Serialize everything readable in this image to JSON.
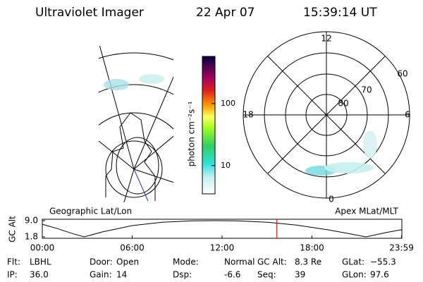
{
  "header": {
    "instrument": "Ultraviolet Imager",
    "date": "22 Apr 07",
    "time": "15:39:14 UT"
  },
  "geographic_panel": {
    "label": "Geographic Lat/Lon"
  },
  "colorbar": {
    "label": "photon cm⁻²s⁻¹",
    "log": true,
    "range": [
      3.5,
      575
    ],
    "ticks": [
      10,
      100
    ]
  },
  "polar_panel": {
    "label": "Apex MLat/MLT",
    "mlt_labels": [
      "12",
      "18",
      "6",
      "0"
    ],
    "lat_labels": [
      "60",
      "70",
      "80"
    ]
  },
  "altitude_plot": {
    "ylabel": "GC Alt",
    "ylim": [
      1.8,
      9.0
    ],
    "yticks": [
      {
        "value": 9.0,
        "label": "9.0"
      },
      1.8
    ],
    "xlim": [
      0,
      24
    ],
    "xticks": [
      {
        "value": 0,
        "label": "00:00"
      },
      {
        "value": 6,
        "label": "06:00"
      },
      {
        "value": 12,
        "label": "12:00"
      },
      {
        "value": 18,
        "label": "18:00"
      },
      {
        "value": 23.98,
        "label": "23:59"
      }
    ],
    "x": [
      0,
      1,
      2,
      2.8,
      4,
      6,
      8,
      10,
      11.5,
      13,
      15,
      17,
      19,
      20.5,
      21.6,
      23,
      24
    ],
    "values": [
      7.4,
      5.5,
      3.3,
      1.8,
      4.0,
      6.8,
      8.3,
      8.9,
      9.0,
      8.9,
      8.3,
      7.0,
      5.0,
      3.2,
      1.8,
      3.8,
      5.0
    ],
    "current_time": 15.654,
    "marker_color": "#e00000"
  },
  "status": [
    [
      [
        "Flt:",
        "LBHL"
      ],
      [
        "Door:",
        "Open"
      ],
      [
        "Mode:",
        "Normal"
      ],
      [
        "GC Alt:",
        "8.3 Re"
      ],
      [
        "GLat:",
        "−55.3"
      ]
    ],
    [
      [
        "IP:",
        "36.0"
      ],
      [
        "Gain:",
        "14"
      ],
      [
        "Dsp:",
        "-6.6"
      ],
      [
        "Seq:",
        "39"
      ],
      [
        "GLon:",
        "97.6"
      ]
    ]
  ]
}
